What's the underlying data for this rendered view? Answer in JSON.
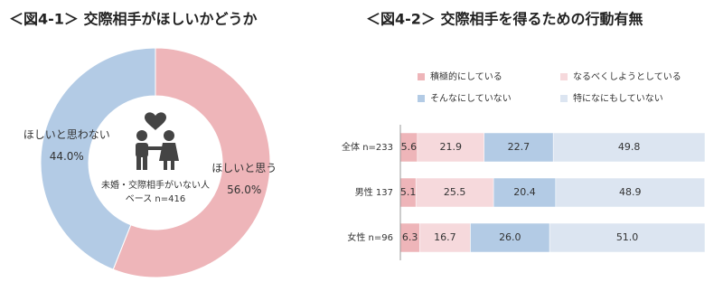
{
  "chart_data": [
    {
      "type": "donut",
      "title": "＜図4-1＞ 交際相手がほしいかどうか",
      "categories": [
        "ほしいと思う",
        "ほしいと思わない"
      ],
      "values": [
        56.0,
        44.0
      ],
      "value_labels": [
        "56.0%",
        "44.0%"
      ],
      "colors": [
        "#eeb5b9",
        "#b3cbe5"
      ],
      "center_text": [
        "未婚・交際相手がいない人",
        "ベース n=416"
      ]
    },
    {
      "type": "stacked_bar",
      "title": "＜図4-2＞ 交際相手を得るための行動有無",
      "categories": [
        "全体 n=233",
        "男性 137",
        "女性 n=96"
      ],
      "xlim": [
        0,
        100
      ],
      "series": [
        {
          "name": "積極的にしている",
          "color": "#eeb5b9",
          "values": [
            5.6,
            5.1,
            6.3
          ],
          "value_labels": [
            "5.6",
            "5.1",
            "6.3"
          ]
        },
        {
          "name": "なるべくしようとしている",
          "color": "#f6d9dc",
          "values": [
            21.9,
            25.5,
            16.7
          ],
          "value_labels": [
            "21.9",
            "25.5",
            "16.7"
          ]
        },
        {
          "name": "そんなにしていない",
          "color": "#b3cbe5",
          "values": [
            22.7,
            20.4,
            26.0
          ],
          "value_labels": [
            "22.7",
            "20.4",
            "26.0"
          ]
        },
        {
          "name": "特になにもしていない",
          "color": "#dce5f1",
          "values": [
            49.8,
            48.9,
            51.0
          ],
          "value_labels": [
            "49.8",
            "48.9",
            "51.0"
          ]
        }
      ]
    }
  ]
}
